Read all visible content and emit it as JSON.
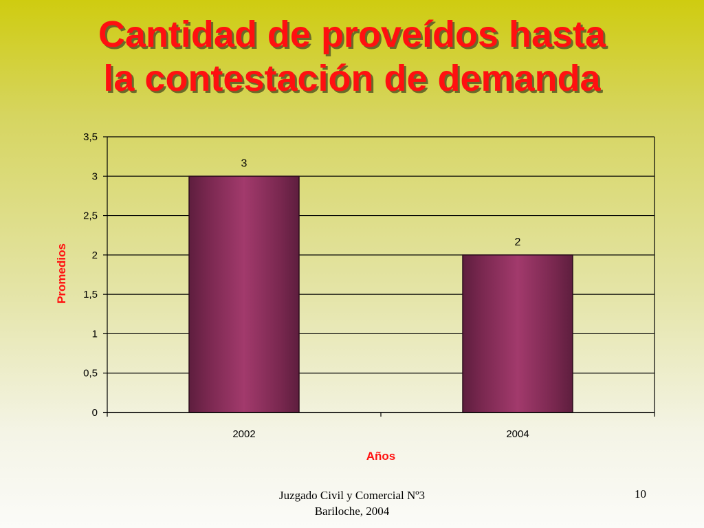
{
  "slide": {
    "title_line1": "Cantidad de proveídos hasta",
    "title_line2": "la contestación de demanda",
    "footer_line1": "Juzgado Civil y Comercial Nº3",
    "footer_line2": "Bariloche, 2004",
    "page_number": "10"
  },
  "chart_data": {
    "type": "bar",
    "categories": [
      "2002",
      "2004"
    ],
    "values": [
      3,
      2
    ],
    "data_labels": [
      "3",
      "2"
    ],
    "xlabel": "Años",
    "ylabel": "Promedios",
    "ylim": [
      0,
      3.5
    ],
    "yticks": [
      0,
      0.5,
      1,
      1.5,
      2,
      2.5,
      3,
      3.5
    ],
    "ytick_labels": [
      "0",
      "0,5",
      "1",
      "1,5",
      "2",
      "2,5",
      "3",
      "3,5"
    ],
    "grid": true,
    "bar_color": "#8f2d5e",
    "title_color": "#ff1010"
  }
}
